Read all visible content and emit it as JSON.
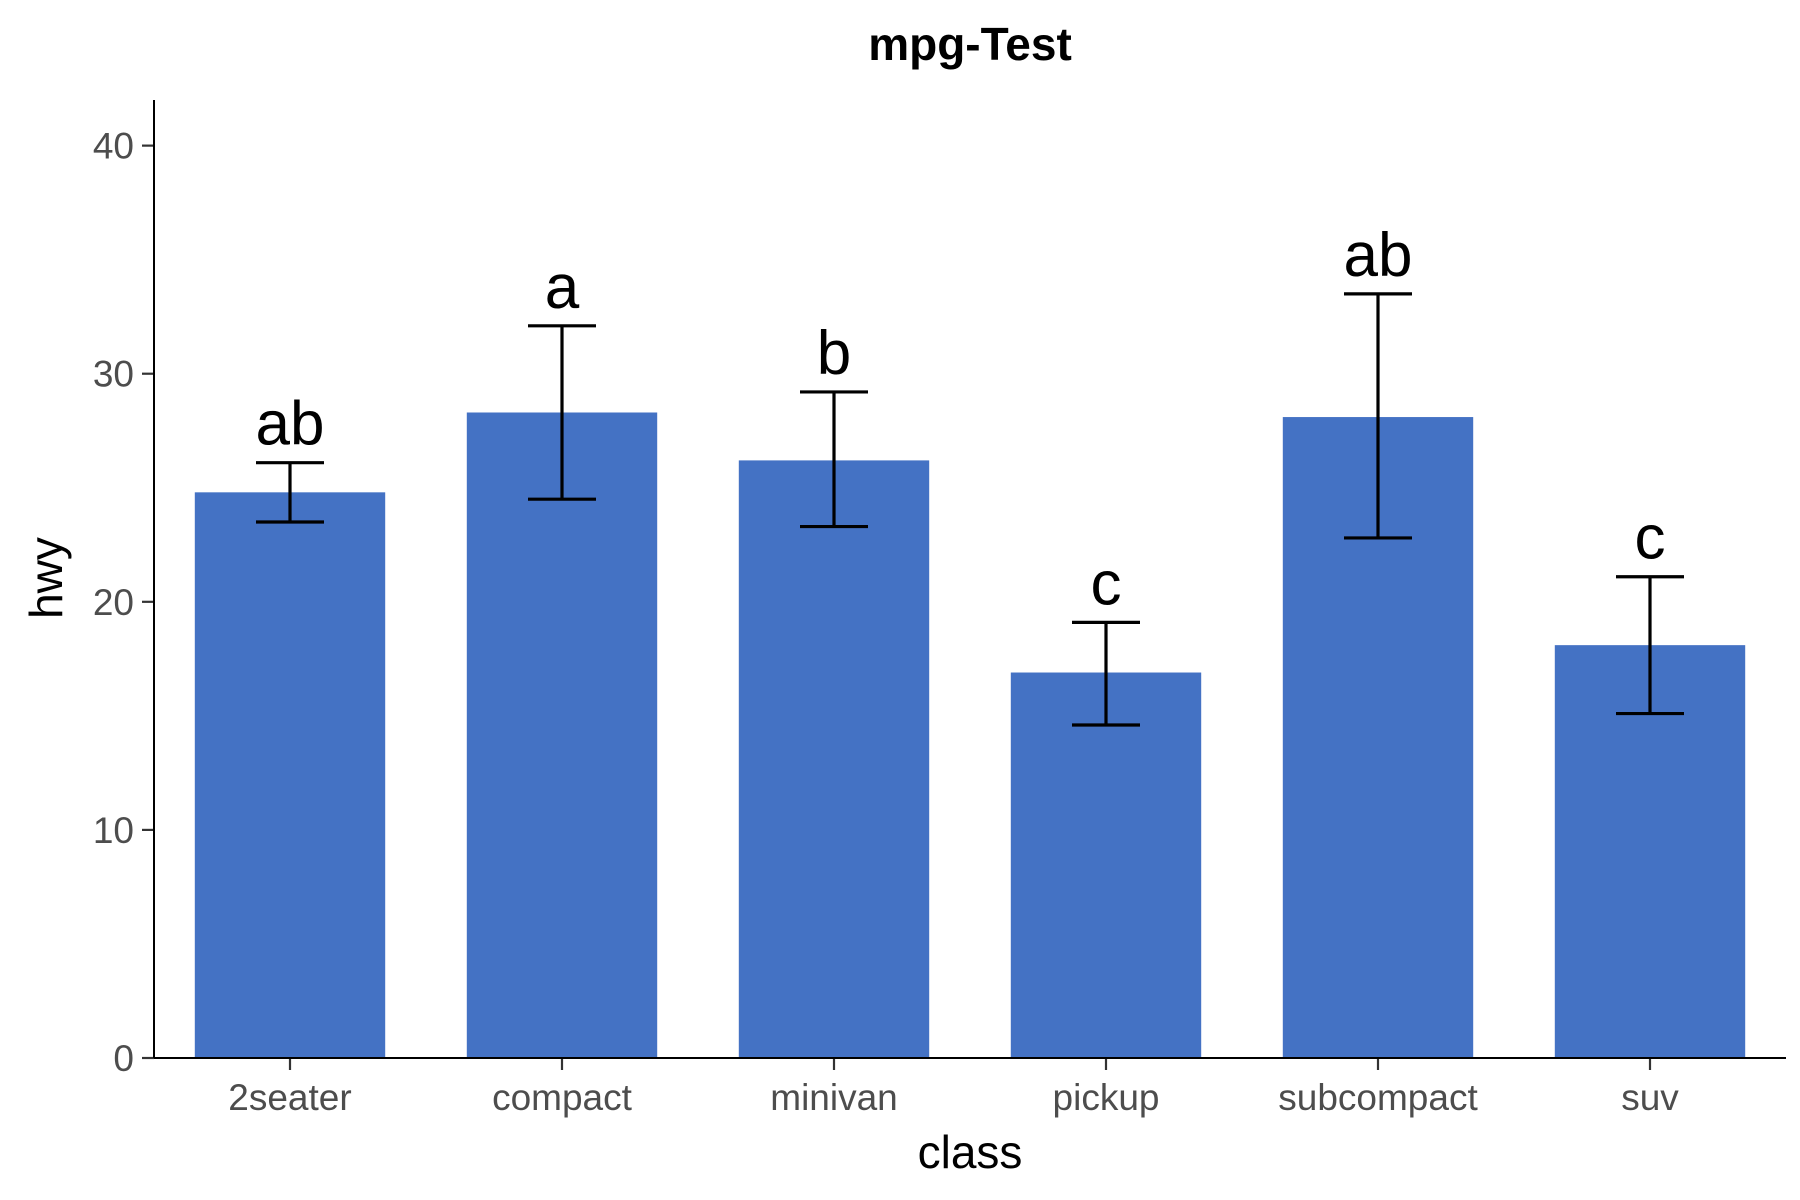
{
  "colors": {
    "bar": "#4472C4",
    "error_bar": "#000000",
    "background": "#ffffff"
  },
  "chart_data": {
    "type": "bar",
    "title": "mpg-Test",
    "xlabel": "class",
    "ylabel": "hwy",
    "ylim": [
      0,
      42
    ],
    "yticks": [
      0,
      10,
      20,
      30,
      40
    ],
    "grid": false,
    "categories": [
      "2seater",
      "compact",
      "minivan",
      "pickup",
      "subcompact",
      "suv"
    ],
    "values": [
      24.8,
      28.3,
      26.2,
      16.9,
      28.1,
      18.1
    ],
    "error_bars": [
      {
        "lower": 23.5,
        "upper": 26.1
      },
      {
        "lower": 24.5,
        "upper": 32.1
      },
      {
        "lower": 23.3,
        "upper": 29.2
      },
      {
        "lower": 14.6,
        "upper": 19.1
      },
      {
        "lower": 22.8,
        "upper": 33.5
      },
      {
        "lower": 15.1,
        "upper": 21.1
      }
    ],
    "significance_labels": [
      "ab",
      "a",
      "b",
      "c",
      "ab",
      "c"
    ]
  }
}
